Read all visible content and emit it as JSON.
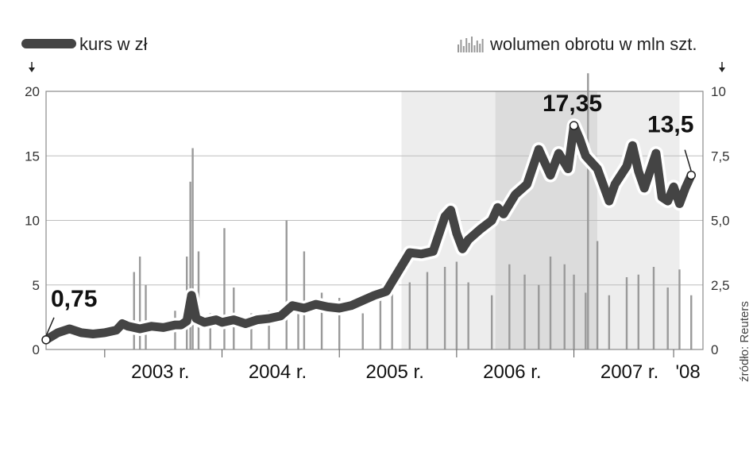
{
  "legend": {
    "price_label": "kurs w zł",
    "volume_label": "wolumen obrotu w mln szt."
  },
  "source": "źródło: Reuters",
  "chart_data": {
    "type": "line",
    "x_unit": "year",
    "y_left": {
      "ticks": [
        "0",
        "5",
        "10",
        "15",
        "20"
      ],
      "range": [
        0,
        20
      ]
    },
    "y_right": {
      "ticks": [
        "0",
        "2,5",
        "5,0",
        "7,5",
        "10"
      ],
      "range": [
        0,
        10
      ]
    },
    "x_range": [
      2002.5,
      2008.1
    ],
    "year_labels": [
      {
        "x": 2003.0,
        "label": "2003 r."
      },
      {
        "x": 2004.0,
        "label": "2004 r."
      },
      {
        "x": 2005.0,
        "label": "2005 r."
      },
      {
        "x": 2006.0,
        "label": "2006 r."
      },
      {
        "x": 2007.0,
        "label": "2007 r."
      },
      {
        "x": 2007.85,
        "label": "'08"
      }
    ],
    "shaded_periods": [
      {
        "from": 2005.53,
        "to": 2006.33,
        "shade": "light"
      },
      {
        "from": 2006.33,
        "to": 2007.2,
        "shade": "medium"
      },
      {
        "from": 2007.2,
        "to": 2007.9,
        "shade": "light"
      }
    ],
    "series": [
      {
        "name": "kurs w zł",
        "axis": "left",
        "color": "#444444",
        "points": [
          [
            2002.5,
            0.75
          ],
          [
            2002.6,
            1.3
          ],
          [
            2002.7,
            1.6
          ],
          [
            2002.8,
            1.3
          ],
          [
            2002.9,
            1.2
          ],
          [
            2003.0,
            1.3
          ],
          [
            2003.1,
            1.5
          ],
          [
            2003.15,
            2.0
          ],
          [
            2003.2,
            1.8
          ],
          [
            2003.3,
            1.6
          ],
          [
            2003.4,
            1.8
          ],
          [
            2003.5,
            1.7
          ],
          [
            2003.6,
            1.9
          ],
          [
            2003.65,
            1.9
          ],
          [
            2003.7,
            2.2
          ],
          [
            2003.74,
            4.2
          ],
          [
            2003.78,
            2.4
          ],
          [
            2003.85,
            2.1
          ],
          [
            2003.95,
            2.3
          ],
          [
            2004.0,
            2.1
          ],
          [
            2004.1,
            2.3
          ],
          [
            2004.2,
            2.0
          ],
          [
            2004.3,
            2.3
          ],
          [
            2004.4,
            2.4
          ],
          [
            2004.5,
            2.6
          ],
          [
            2004.6,
            3.4
          ],
          [
            2004.7,
            3.2
          ],
          [
            2004.8,
            3.5
          ],
          [
            2004.9,
            3.3
          ],
          [
            2005.0,
            3.2
          ],
          [
            2005.1,
            3.4
          ],
          [
            2005.2,
            3.8
          ],
          [
            2005.3,
            4.2
          ],
          [
            2005.4,
            4.5
          ],
          [
            2005.5,
            6.0
          ],
          [
            2005.6,
            7.5
          ],
          [
            2005.7,
            7.4
          ],
          [
            2005.8,
            7.6
          ],
          [
            2005.9,
            10.3
          ],
          [
            2005.95,
            10.8
          ],
          [
            2006.0,
            9.0
          ],
          [
            2006.05,
            7.8
          ],
          [
            2006.1,
            8.5
          ],
          [
            2006.2,
            9.3
          ],
          [
            2006.3,
            10.0
          ],
          [
            2006.35,
            11.0
          ],
          [
            2006.4,
            10.5
          ],
          [
            2006.5,
            12.0
          ],
          [
            2006.6,
            12.8
          ],
          [
            2006.7,
            15.5
          ],
          [
            2006.75,
            14.5
          ],
          [
            2006.8,
            13.5
          ],
          [
            2006.87,
            15.2
          ],
          [
            2006.95,
            14.0
          ],
          [
            2007.0,
            17.35
          ],
          [
            2007.05,
            16.3
          ],
          [
            2007.1,
            15.0
          ],
          [
            2007.2,
            14.0
          ],
          [
            2007.3,
            11.5
          ],
          [
            2007.35,
            12.8
          ],
          [
            2007.45,
            14.2
          ],
          [
            2007.5,
            15.8
          ],
          [
            2007.55,
            13.8
          ],
          [
            2007.6,
            12.5
          ],
          [
            2007.7,
            15.2
          ],
          [
            2007.75,
            11.8
          ],
          [
            2007.8,
            11.5
          ],
          [
            2007.85,
            12.6
          ],
          [
            2007.9,
            11.3
          ],
          [
            2007.95,
            12.5
          ],
          [
            2008.0,
            13.5
          ]
        ]
      },
      {
        "name": "wolumen obrotu w mln szt.",
        "axis": "right",
        "color": "#9a9a9a",
        "points": [
          [
            2003.25,
            3.0
          ],
          [
            2003.3,
            3.6
          ],
          [
            2003.35,
            2.5
          ],
          [
            2003.6,
            1.5
          ],
          [
            2003.7,
            3.6
          ],
          [
            2003.73,
            6.5
          ],
          [
            2003.75,
            7.8
          ],
          [
            2003.8,
            3.8
          ],
          [
            2003.9,
            1.4
          ],
          [
            2004.02,
            4.7
          ],
          [
            2004.1,
            2.4
          ],
          [
            2004.25,
            1.4
          ],
          [
            2004.4,
            1.5
          ],
          [
            2004.55,
            5.0
          ],
          [
            2004.65,
            1.8
          ],
          [
            2004.7,
            3.8
          ],
          [
            2004.85,
            2.2
          ],
          [
            2005.0,
            2.0
          ],
          [
            2005.2,
            1.4
          ],
          [
            2005.35,
            2.0
          ],
          [
            2005.45,
            2.3
          ],
          [
            2005.6,
            2.6
          ],
          [
            2005.75,
            3.0
          ],
          [
            2005.9,
            3.2
          ],
          [
            2006.0,
            3.4
          ],
          [
            2006.1,
            2.6
          ],
          [
            2006.3,
            2.1
          ],
          [
            2006.45,
            3.3
          ],
          [
            2006.58,
            2.9
          ],
          [
            2006.7,
            2.5
          ],
          [
            2006.8,
            3.6
          ],
          [
            2006.92,
            3.3
          ],
          [
            2007.0,
            2.9
          ],
          [
            2007.1,
            2.2
          ],
          [
            2007.12,
            10.7
          ],
          [
            2007.2,
            4.2
          ],
          [
            2007.3,
            2.1
          ],
          [
            2007.45,
            2.8
          ],
          [
            2007.55,
            2.9
          ],
          [
            2007.68,
            3.2
          ],
          [
            2007.8,
            2.4
          ],
          [
            2007.9,
            3.1
          ],
          [
            2008.0,
            2.1
          ]
        ]
      }
    ],
    "annotations": [
      {
        "text": "0,75",
        "x": 2002.5,
        "y": 0.75
      },
      {
        "text": "17,35",
        "x": 2007.0,
        "y": 17.35
      },
      {
        "text": "13,5",
        "x": 2008.0,
        "y": 13.5
      }
    ]
  }
}
